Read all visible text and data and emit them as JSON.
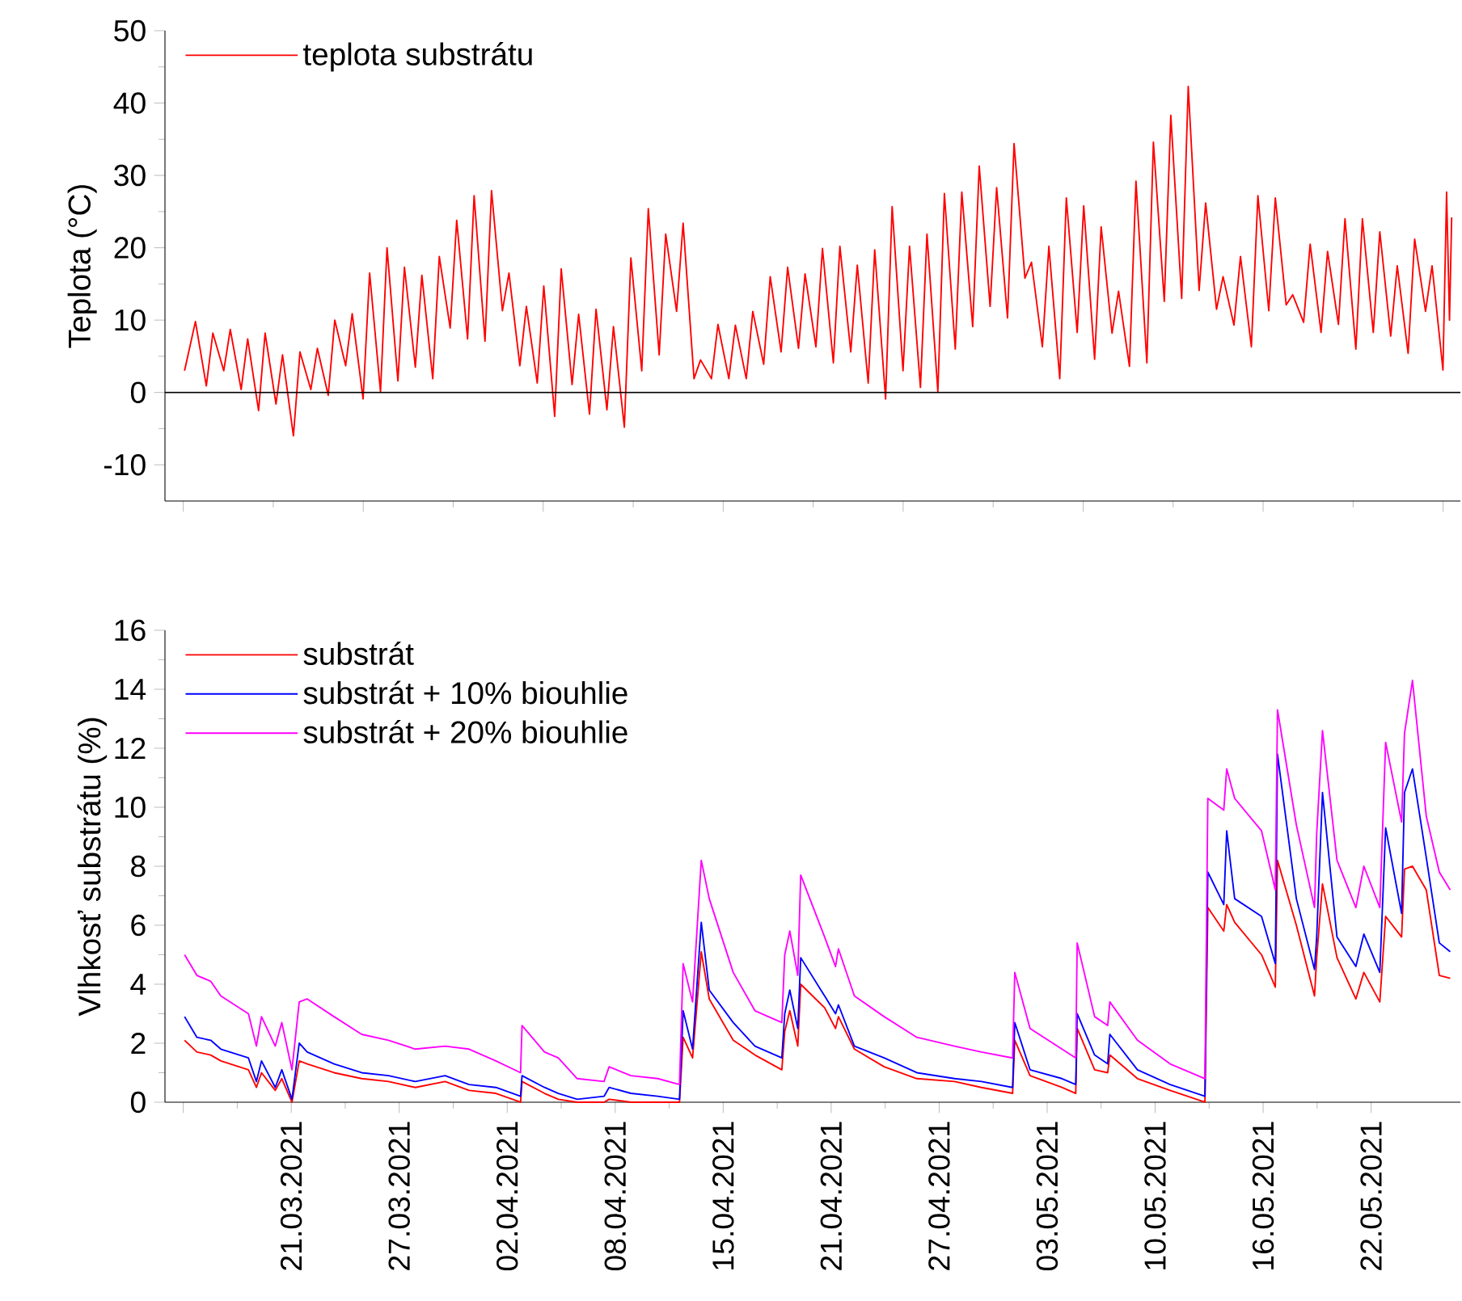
{
  "chart_data": [
    {
      "type": "line",
      "ylabel": "Teplota (°C)",
      "legend": "top left",
      "tick_labels": "y",
      "xlim": [
        "2021-03-13T18:00",
        "2021-05-27T03:00"
      ],
      "ylim": [
        -15,
        50
      ],
      "yticks": [
        -10,
        0,
        10,
        20,
        30,
        40,
        50
      ],
      "xticks": [
        {
          "value": "2021-03-14T19:12",
          "label": null
        },
        {
          "value": "2021-03-25T03:12",
          "label": null
        },
        {
          "value": "2021-04-04T11:12",
          "label": null
        },
        {
          "value": "2021-04-14T19:12",
          "label": null
        },
        {
          "value": "2021-04-25T03:12",
          "label": null
        },
        {
          "value": "2021-05-05T11:12",
          "label": null
        },
        {
          "value": "2021-05-15T19:12",
          "label": null
        },
        {
          "value": "2021-05-26T03:12",
          "label": null
        }
      ],
      "ref_lines": [
        {
          "axis": "y",
          "value": 0,
          "color": "#000000"
        }
      ],
      "series": [
        {
          "name": "teplota substrátu",
          "color": "#ff0000",
          "x": [
            "2021-03-14T21:00",
            "2021-03-15T12:00",
            "2021-03-16T03:00",
            "2021-03-16T12:00",
            "2021-03-17T03:00",
            "2021-03-17T12:00",
            "2021-03-18T03:00",
            "2021-03-18T12:00",
            "2021-03-19T03:00",
            "2021-03-19T12:00",
            "2021-03-20T03:00",
            "2021-03-20T12:00",
            "2021-03-21T03:00",
            "2021-03-21T12:00",
            "2021-03-22T03:00",
            "2021-03-22T12:00",
            "2021-03-23T03:00",
            "2021-03-23T12:00",
            "2021-03-24T03:00",
            "2021-03-24T12:00",
            "2021-03-25T03:00",
            "2021-03-25T12:00",
            "2021-03-26T03:00",
            "2021-03-26T12:00",
            "2021-03-27T03:00",
            "2021-03-27T12:00",
            "2021-03-28T03:00",
            "2021-03-28T12:00",
            "2021-03-29T03:00",
            "2021-03-29T12:00",
            "2021-03-30T03:00",
            "2021-03-30T12:00",
            "2021-03-31T03:00",
            "2021-03-31T12:00",
            "2021-04-01T03:00",
            "2021-04-01T12:00",
            "2021-04-02T03:00",
            "2021-04-02T12:00",
            "2021-04-03T03:00",
            "2021-04-03T12:00",
            "2021-04-04T03:00",
            "2021-04-04T12:00",
            "2021-04-05T03:00",
            "2021-04-05T12:00",
            "2021-04-06T03:00",
            "2021-04-06T12:00",
            "2021-04-07T03:00",
            "2021-04-07T12:00",
            "2021-04-08T03:00",
            "2021-04-08T12:00",
            "2021-04-09T03:00",
            "2021-04-09T12:00",
            "2021-04-10T03:00",
            "2021-04-10T12:00",
            "2021-04-11T03:00",
            "2021-04-11T12:00",
            "2021-04-12T03:00",
            "2021-04-12T12:00",
            "2021-04-13T03:00",
            "2021-04-13T12:00",
            "2021-04-14T03:00",
            "2021-04-14T12:00",
            "2021-04-15T03:00",
            "2021-04-15T12:00",
            "2021-04-16T03:00",
            "2021-04-16T12:00",
            "2021-04-17T03:00",
            "2021-04-17T12:00",
            "2021-04-18T03:00",
            "2021-04-18T12:00",
            "2021-04-19T03:00",
            "2021-04-19T12:00",
            "2021-04-20T03:00",
            "2021-04-20T12:00",
            "2021-04-21T03:00",
            "2021-04-21T12:00",
            "2021-04-22T03:00",
            "2021-04-22T12:00",
            "2021-04-23T03:00",
            "2021-04-23T12:00",
            "2021-04-24T03:00",
            "2021-04-24T12:00",
            "2021-04-25T03:00",
            "2021-04-25T12:00",
            "2021-04-26T03:00",
            "2021-04-26T12:00",
            "2021-04-27T03:00",
            "2021-04-27T12:00",
            "2021-04-28T03:00",
            "2021-04-28T12:00",
            "2021-04-29T03:00",
            "2021-04-29T12:00",
            "2021-04-30T03:00",
            "2021-04-30T12:00",
            "2021-05-01T03:00",
            "2021-05-01T12:00",
            "2021-05-02T03:00",
            "2021-05-02T12:00",
            "2021-05-03T03:00",
            "2021-05-03T12:00",
            "2021-05-04T03:00",
            "2021-05-04T12:00",
            "2021-05-05T03:00",
            "2021-05-05T12:00",
            "2021-05-06T03:00",
            "2021-05-06T12:00",
            "2021-05-07T03:00",
            "2021-05-07T12:00",
            "2021-05-08T03:00",
            "2021-05-08T12:00",
            "2021-05-09T03:00",
            "2021-05-09T12:00",
            "2021-05-10T03:00",
            "2021-05-10T12:00",
            "2021-05-11T03:00",
            "2021-05-11T12:00",
            "2021-05-12T03:00",
            "2021-05-12T12:00",
            "2021-05-13T03:00",
            "2021-05-13T12:00",
            "2021-05-14T03:00",
            "2021-05-14T12:00",
            "2021-05-15T03:00",
            "2021-05-15T12:00",
            "2021-05-16T03:00",
            "2021-05-16T12:00",
            "2021-05-17T03:00",
            "2021-05-17T12:00",
            "2021-05-18T03:00",
            "2021-05-18T12:00",
            "2021-05-19T03:00",
            "2021-05-19T12:00",
            "2021-05-20T03:00",
            "2021-05-20T12:00",
            "2021-05-21T03:00",
            "2021-05-21T12:00",
            "2021-05-22T03:00",
            "2021-05-22T12:00",
            "2021-05-23T03:00",
            "2021-05-23T12:00",
            "2021-05-24T03:00",
            "2021-05-24T12:00",
            "2021-05-25T03:00",
            "2021-05-25T12:00",
            "2021-05-26T03:00",
            "2021-05-26T08:00",
            "2021-05-26T12:00",
            "2021-05-26T15:00"
          ],
          "values": [
            3.0,
            9.8,
            0.9,
            8.2,
            3.0,
            8.7,
            0.4,
            7.4,
            -2.5,
            8.2,
            -1.6,
            5.2,
            -6.0,
            5.6,
            0.4,
            6.1,
            -0.4,
            10.0,
            3.7,
            10.9,
            -0.9,
            16.5,
            0.1,
            20.0,
            1.6,
            17.3,
            3.5,
            16.2,
            1.9,
            18.8,
            8.9,
            23.8,
            7.4,
            27.2,
            7.1,
            27.9,
            11.3,
            16.5,
            3.7,
            11.9,
            1.3,
            14.7,
            -3.3,
            17.1,
            1.1,
            10.8,
            -3.0,
            11.5,
            -2.4,
            9.1,
            -4.8,
            18.6,
            3.0,
            25.4,
            5.2,
            21.9,
            11.2,
            23.4,
            1.9,
            4.5,
            1.9,
            9.4,
            1.9,
            9.3,
            1.9,
            11.2,
            3.9,
            16.0,
            5.6,
            17.3,
            6.1,
            16.4,
            6.3,
            19.9,
            4.1,
            20.2,
            5.6,
            17.6,
            1.3,
            19.7,
            -0.9,
            25.7,
            3.0,
            20.2,
            0.7,
            21.9,
            0.1,
            27.5,
            6.0,
            27.7,
            9.1,
            31.3,
            11.9,
            28.3,
            10.3,
            34.4,
            15.8,
            18.0,
            6.3,
            20.2,
            1.9,
            26.9,
            8.3,
            25.8,
            4.6,
            22.9,
            8.2,
            14.0,
            3.6,
            29.2,
            4.1,
            34.6,
            12.6,
            38.3,
            13.0,
            42.3,
            14.1,
            26.2,
            11.5,
            16.0,
            9.3,
            18.8,
            6.3,
            27.2,
            11.3,
            26.9,
            12.1,
            13.5,
            9.7,
            20.5,
            8.3,
            19.5,
            9.4,
            24.0,
            6.0,
            24.0,
            8.3,
            22.2,
            7.8,
            17.5,
            5.4,
            21.2,
            11.2,
            17.5,
            3.1,
            27.7,
            10.0,
            24.2
          ]
        }
      ]
    },
    {
      "type": "line",
      "ylabel": "Vlhkosť substrátu (%)",
      "legend": "top left",
      "xlim": [
        "2021-03-13T18:00",
        "2021-05-27T03:00"
      ],
      "ylim": [
        0,
        16
      ],
      "yticks": [
        0,
        2,
        4,
        6,
        8,
        10,
        12,
        14,
        16
      ],
      "xticks": [
        {
          "value": "2021-03-14T19:12",
          "label": null
        },
        {
          "value": "2021-03-21T00:00",
          "label": "21.03.2021"
        },
        {
          "value": "2021-03-27T04:48",
          "label": "27.03.2021"
        },
        {
          "value": "2021-04-02T09:36",
          "label": "02.04.2021"
        },
        {
          "value": "2021-04-08T14:24",
          "label": "08.04.2021"
        },
        {
          "value": "2021-04-14T19:12",
          "label": "15.04.2021"
        },
        {
          "value": "2021-04-21T00:00",
          "label": "21.04.2021"
        },
        {
          "value": "2021-04-27T04:48",
          "label": "27.04.2021"
        },
        {
          "value": "2021-05-03T09:36",
          "label": "03.05.2021"
        },
        {
          "value": "2021-05-09T14:24",
          "label": "10.05.2021"
        },
        {
          "value": "2021-05-15T19:12",
          "label": "16.05.2021"
        },
        {
          "value": "2021-05-22T00:00",
          "label": "22.05.2021"
        }
      ],
      "x": [
        "2021-03-14T21:00",
        "2021-03-15T14:00",
        "2021-03-16T09:00",
        "2021-03-16T23:00",
        "2021-03-18T13:00",
        "2021-03-19T00:00",
        "2021-03-19T07:00",
        "2021-03-20T02:00",
        "2021-03-20T11:00",
        "2021-03-21T01:00",
        "2021-03-21T11:00",
        "2021-03-21T22:00",
        "2021-03-23T11:00",
        "2021-03-25T01:00",
        "2021-03-26T14:00",
        "2021-03-28T03:00",
        "2021-03-29T20:00",
        "2021-03-31T05:00",
        "2021-04-01T18:00",
        "2021-04-03T04:00",
        "2021-04-03T06:00",
        "2021-04-04T13:00",
        "2021-04-05T08:00",
        "2021-04-06T10:00",
        "2021-04-07T23:00",
        "2021-04-08T06:00",
        "2021-04-09T12:00",
        "2021-04-11T01:00",
        "2021-04-12T07:00",
        "2021-04-12T12:00",
        "2021-04-13T01:00",
        "2021-04-13T13:00",
        "2021-04-14T00:00",
        "2021-04-15T09:00",
        "2021-04-16T15:00",
        "2021-04-18T04:00",
        "2021-04-18T08:00",
        "2021-04-18T15:00",
        "2021-04-19T02:00",
        "2021-04-19T06:00",
        "2021-04-20T15:00",
        "2021-04-21T06:00",
        "2021-04-21T10:00",
        "2021-04-22T08:00",
        "2021-04-24T01:00",
        "2021-04-25T22:00",
        "2021-04-28T02:00",
        "2021-04-29T15:00",
        "2021-05-01T10:00",
        "2021-05-01T13:00",
        "2021-05-02T10:00",
        "2021-05-04T06:00",
        "2021-05-05T01:00",
        "2021-05-05T03:00",
        "2021-05-06T03:00",
        "2021-05-06T21:00",
        "2021-05-07T00:00",
        "2021-05-08T14:00",
        "2021-05-10T11:00",
        "2021-05-12T11:00",
        "2021-05-12T15:00",
        "2021-05-13T13:00",
        "2021-05-13T17:00",
        "2021-05-14T04:00",
        "2021-05-15T17:00",
        "2021-05-16T12:00",
        "2021-05-16T15:00",
        "2021-05-17T17:00",
        "2021-05-18T18:00",
        "2021-05-18T21:00",
        "2021-05-19T05:00",
        "2021-05-20T01:00",
        "2021-05-21T03:00",
        "2021-05-21T14:00",
        "2021-05-22T12:00",
        "2021-05-22T20:00",
        "2021-05-23T18:00",
        "2021-05-23T22:00",
        "2021-05-24T09:00",
        "2021-05-25T04:00",
        "2021-05-25T22:00",
        "2021-05-26T13:00"
      ],
      "series": [
        {
          "name": "substrát",
          "color": "#ff0000",
          "values": [
            2.1,
            1.7,
            1.6,
            1.4,
            1.1,
            0.5,
            1.0,
            0.4,
            0.8,
            0.0,
            1.4,
            1.3,
            1.0,
            0.8,
            0.7,
            0.5,
            0.7,
            0.4,
            0.3,
            0.0,
            0.7,
            0.3,
            0.1,
            0.0,
            0.0,
            0.1,
            0.0,
            0.0,
            0.0,
            2.2,
            1.5,
            5.1,
            3.5,
            2.1,
            1.6,
            1.1,
            2.4,
            3.1,
            1.9,
            4.0,
            3.2,
            2.5,
            2.9,
            1.8,
            1.2,
            0.8,
            0.7,
            0.5,
            0.3,
            2.1,
            0.9,
            0.5,
            0.3,
            2.5,
            1.1,
            1.0,
            1.6,
            0.8,
            0.4,
            0.0,
            6.6,
            5.8,
            6.7,
            6.1,
            5.0,
            3.9,
            8.2,
            6.0,
            3.6,
            4.9,
            7.4,
            4.9,
            3.5,
            4.4,
            3.4,
            6.3,
            5.6,
            7.9,
            8.0,
            7.2,
            4.3,
            4.2
          ]
        },
        {
          "name": "substrát + 10% biouhlie",
          "color": "#0000ff",
          "values": [
            2.9,
            2.2,
            2.1,
            1.8,
            1.5,
            0.7,
            1.4,
            0.5,
            1.1,
            0.1,
            2.0,
            1.7,
            1.3,
            1.0,
            0.9,
            0.7,
            0.9,
            0.6,
            0.5,
            0.2,
            0.9,
            0.5,
            0.3,
            0.1,
            0.2,
            0.5,
            0.3,
            0.2,
            0.1,
            3.1,
            1.8,
            6.1,
            3.8,
            2.7,
            1.9,
            1.5,
            3.0,
            3.8,
            2.5,
            4.9,
            3.6,
            3.0,
            3.3,
            1.9,
            1.5,
            1.0,
            0.8,
            0.7,
            0.5,
            2.7,
            1.1,
            0.8,
            0.6,
            3.0,
            1.6,
            1.3,
            2.3,
            1.1,
            0.6,
            0.2,
            7.8,
            6.7,
            9.2,
            6.9,
            6.3,
            4.7,
            11.8,
            6.9,
            4.5,
            5.6,
            10.5,
            5.6,
            4.6,
            5.7,
            4.4,
            9.3,
            6.4,
            10.5,
            11.3,
            8.3,
            5.4,
            5.1
          ]
        },
        {
          "name": "substrát + 20% biouhlie",
          "color": "#ff00ff",
          "values": [
            5.0,
            4.3,
            4.1,
            3.6,
            3.0,
            1.9,
            2.9,
            1.9,
            2.7,
            1.1,
            3.4,
            3.5,
            2.9,
            2.3,
            2.1,
            1.8,
            1.9,
            1.8,
            1.4,
            1.0,
            2.6,
            1.7,
            1.5,
            0.8,
            0.7,
            1.2,
            0.9,
            0.8,
            0.6,
            4.7,
            3.4,
            8.2,
            6.9,
            4.4,
            3.1,
            2.7,
            5.0,
            5.8,
            4.3,
            7.7,
            5.6,
            4.6,
            5.2,
            3.6,
            2.9,
            2.2,
            1.9,
            1.7,
            1.5,
            4.4,
            2.5,
            1.8,
            1.5,
            5.4,
            2.9,
            2.6,
            3.4,
            2.1,
            1.3,
            0.8,
            10.3,
            9.9,
            11.3,
            10.3,
            9.2,
            7.2,
            13.3,
            9.4,
            6.6,
            9.1,
            12.6,
            8.2,
            6.6,
            8.0,
            6.6,
            12.2,
            9.5,
            12.5,
            14.3,
            9.7,
            7.8,
            7.2
          ]
        }
      ]
    }
  ]
}
